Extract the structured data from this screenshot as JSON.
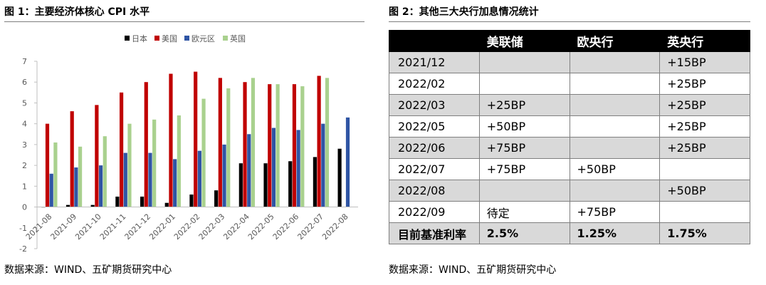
{
  "left_figure": {
    "title": "图 1：主要经济体核心 CPI 水平",
    "source": "数据来源：WIND、五矿期货研究中心"
  },
  "right_figure": {
    "title": "图 2：其他三大央行加息情况统计",
    "source": "数据来源：WIND、五矿期货研究中心",
    "table": {
      "headers": [
        "",
        "美联储",
        "欧央行",
        "英央行"
      ],
      "rows": [
        [
          "2021/12",
          "",
          "",
          "+15BP"
        ],
        [
          "2022/02",
          "",
          "",
          "+25BP"
        ],
        [
          "2022/03",
          "+25BP",
          "",
          "+25BP"
        ],
        [
          "2022/05",
          "+50BP",
          "",
          "+25BP"
        ],
        [
          "2022/06",
          "+75BP",
          "",
          "+25BP"
        ],
        [
          "2022/07",
          "+75BP",
          "+50BP",
          ""
        ],
        [
          "2022/08",
          "",
          "",
          "+50BP"
        ],
        [
          "2022/09",
          "待定",
          "+75BP",
          ""
        ],
        [
          "目前基准利率",
          "2.5%",
          "1.25%",
          "1.75%"
        ]
      ]
    }
  },
  "chart_data": {
    "type": "bar",
    "title": "图 1：主要经济体核心 CPI 水平",
    "xlabel": "",
    "ylabel": "",
    "ylim": [
      -2,
      7
    ],
    "yticks": [
      "-2",
      "-1",
      "0",
      "1",
      "2",
      "3",
      "4",
      "5",
      "6",
      "7"
    ],
    "grid": false,
    "legend_position": "top",
    "categories": [
      "2021-08",
      "2021-09",
      "2021-10",
      "2021-11",
      "2021-12",
      "2022-01",
      "2022-02",
      "2022-03",
      "2022-04",
      "2022-05",
      "2022-06",
      "2022-07",
      "2022-08"
    ],
    "series": [
      {
        "name": "日本",
        "color": "#000000",
        "values": [
          0.0,
          0.1,
          0.1,
          0.5,
          0.5,
          0.2,
          0.6,
          0.8,
          2.1,
          2.1,
          2.2,
          2.4,
          2.8
        ]
      },
      {
        "name": "美国",
        "color": "#c00000",
        "values": [
          4.0,
          4.6,
          4.9,
          5.5,
          6.0,
          6.4,
          6.5,
          6.2,
          6.0,
          5.9,
          5.9,
          6.3,
          null
        ]
      },
      {
        "name": "欧元区",
        "color": "#2f55a4",
        "values": [
          1.6,
          1.9,
          2.0,
          2.6,
          2.6,
          2.3,
          2.7,
          3.0,
          3.5,
          3.8,
          3.7,
          4.0,
          4.3
        ]
      },
      {
        "name": "英国",
        "color": "#a9d18e",
        "values": [
          3.1,
          2.9,
          3.4,
          4.0,
          4.2,
          4.4,
          5.2,
          5.7,
          6.2,
          5.9,
          5.8,
          6.2,
          null
        ]
      }
    ]
  }
}
